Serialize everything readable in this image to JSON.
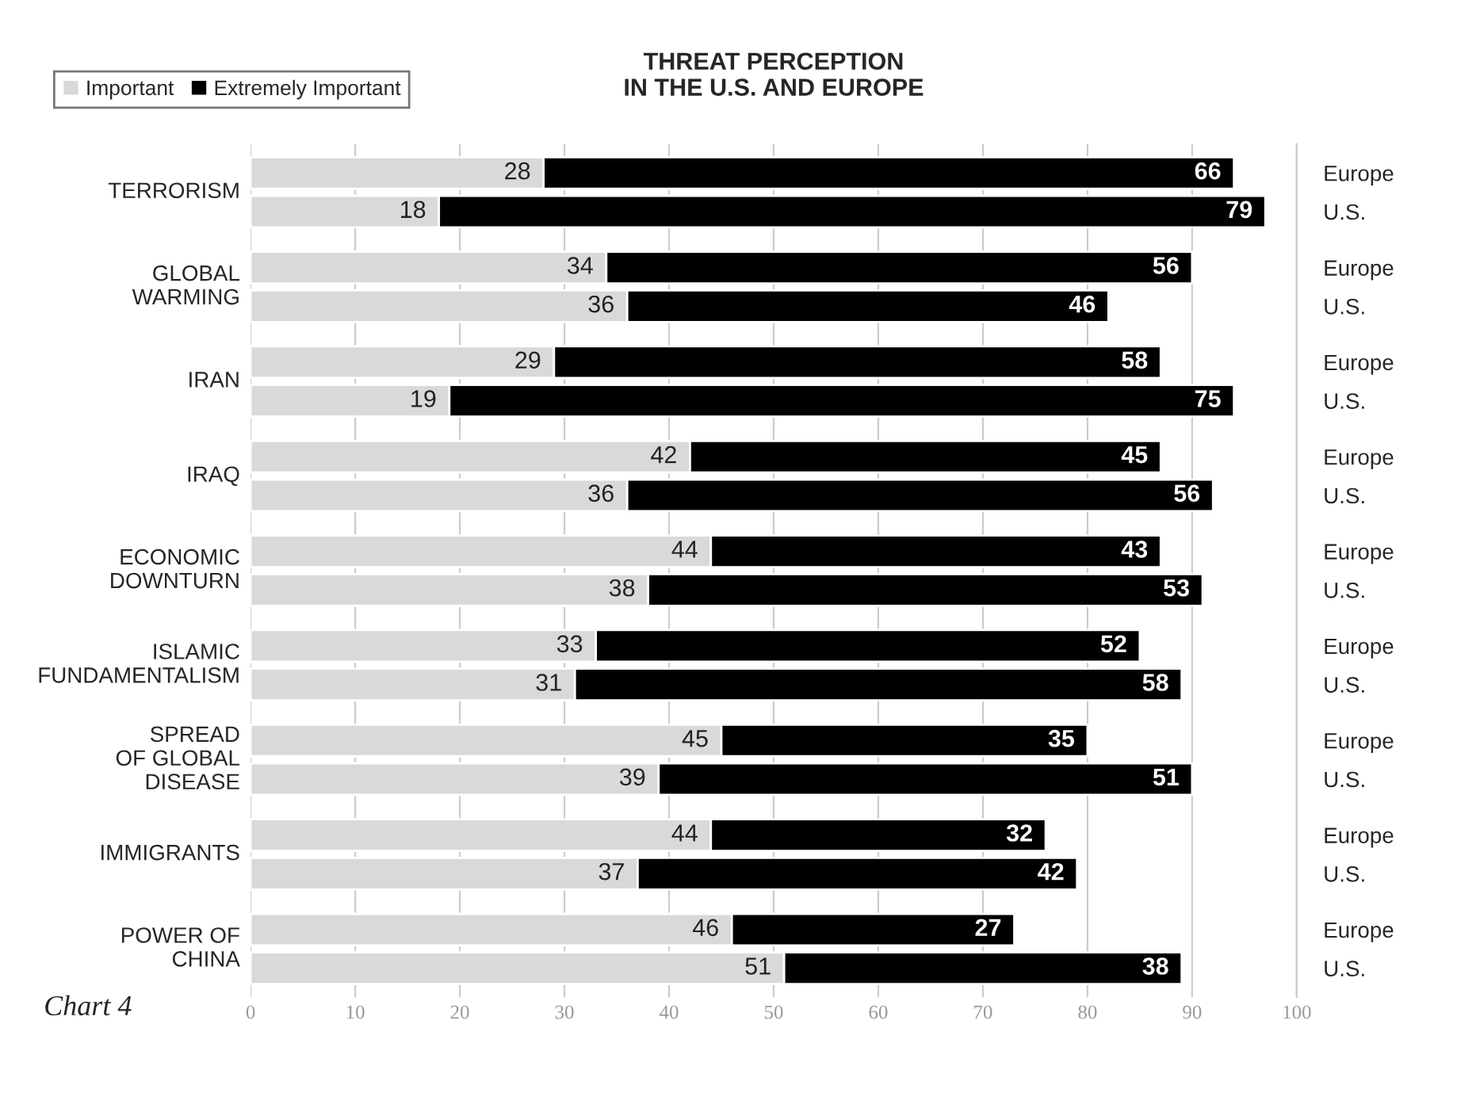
{
  "chart_data": {
    "type": "bar",
    "orientation": "horizontal",
    "stacked": true,
    "title": "THREAT PERCEPTION\nIN THE U.S. AND EUROPE",
    "categories": [
      "Europe",
      "U.S.",
      "Europe",
      "U.S.",
      "Europe",
      "U.S.",
      "Europe",
      "U.S.",
      "Europe",
      "U.S.",
      "Europe",
      "U.S.",
      "Europe",
      "U.S.",
      "Europe",
      "U.S.",
      "Europe",
      "U.S."
    ],
    "series": [
      {
        "name": "Important",
        "color": "#d9d9d9",
        "values": [
          28,
          18,
          34,
          36,
          29,
          19,
          42,
          36,
          44,
          38,
          33,
          31,
          45,
          39,
          44,
          37,
          46,
          51
        ]
      },
      {
        "name": "Extremely Important",
        "color": "#000000",
        "values": [
          66,
          79,
          56,
          46,
          58,
          75,
          45,
          56,
          43,
          53,
          52,
          58,
          35,
          51,
          32,
          42,
          27,
          38
        ]
      }
    ],
    "xlim": [
      0,
      100
    ],
    "xticks": [
      0,
      10,
      20,
      30,
      40,
      50,
      60,
      70,
      80,
      90,
      100
    ],
    "grid": "x",
    "legend": "top left",
    "data_labels": true,
    "annotations": [
      "TERRORISM",
      "GLOBAL\nWARMING",
      "IRAN",
      "IRAQ",
      "ECONOMIC\nDOWNTURN",
      "ISLAMIC\nFUNDAMENTALISM",
      "SPREAD\nOF GLOBAL\nDISEASE",
      "IMMIGRANTS",
      "POWER OF\nCHINA",
      "Chart 4"
    ]
  }
}
